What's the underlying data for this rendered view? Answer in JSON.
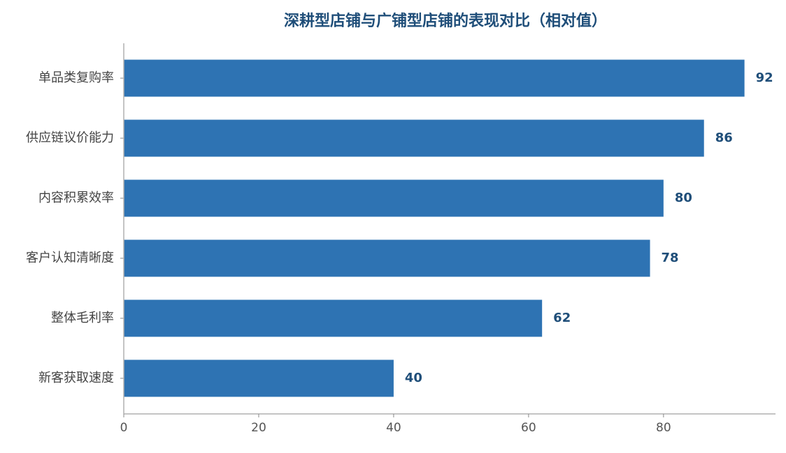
{
  "chart_data": {
    "type": "bar",
    "orientation": "horizontal",
    "title": "深耕型店铺与广铺型店铺的表现对比（相对值）",
    "categories": [
      "单品类复购率",
      "供应链议价能力",
      "内容积累效率",
      "客户认知清晰度",
      "整体毛利率",
      "新客获取速度"
    ],
    "values": [
      92,
      86,
      80,
      78,
      62,
      40
    ],
    "xlabel": "",
    "ylabel": "",
    "xlim": [
      0,
      96.6
    ],
    "xticks": [
      "0",
      "20",
      "40",
      "60",
      "80"
    ],
    "grid": false,
    "legend": "none",
    "bar_color": "#2e73b3",
    "label_color": "#1f4e79"
  }
}
